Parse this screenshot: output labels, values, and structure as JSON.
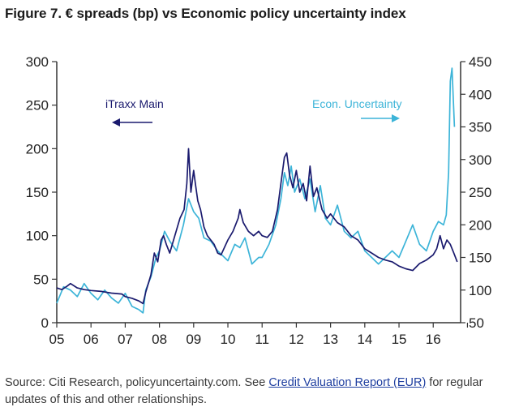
{
  "title": "Figure 7. € spreads (bp) vs Economic policy uncertainty index",
  "source": {
    "text_before": "Source: Citi Research, policyuncertainty.com. See ",
    "link_text": "Credit Valuation Report (EUR)",
    "text_after": " for regular updates of this and other relationships."
  },
  "chart_data": {
    "type": "line",
    "title": "Figure 7. € spreads (bp) vs Economic policy uncertainty index",
    "x_tick_labels": [
      "05",
      "06",
      "07",
      "08",
      "09",
      "10",
      "11",
      "12",
      "13",
      "14",
      "15",
      "16"
    ],
    "x_range": [
      2005.0,
      2016.8
    ],
    "y_left": {
      "range": [
        0,
        300
      ],
      "ticks": [
        0,
        50,
        100,
        150,
        200,
        250,
        300
      ]
    },
    "y_right": {
      "range": [
        50,
        450
      ],
      "ticks": [
        50,
        100,
        150,
        200,
        250,
        300,
        350,
        400,
        450
      ]
    },
    "colors": {
      "itraxx": "#1a1a6e",
      "uncertainty": "#3cb4d8",
      "axis": "#333333"
    },
    "annotations": [
      {
        "label": "iTraxx Main",
        "arrow": "left",
        "axis": "left"
      },
      {
        "label": "Econ. Uncertainty",
        "arrow": "right",
        "axis": "right"
      }
    ],
    "series": [
      {
        "name": "iTraxx Main",
        "axis": "left",
        "x": [
          2005.0,
          2005.15,
          2005.3,
          2005.4,
          2005.6,
          2005.8,
          2006.0,
          2006.3,
          2006.6,
          2006.9,
          2007.0,
          2007.2,
          2007.4,
          2007.52,
          2007.6,
          2007.75,
          2007.85,
          2007.95,
          2008.05,
          2008.12,
          2008.2,
          2008.3,
          2008.45,
          2008.6,
          2008.72,
          2008.8,
          2008.85,
          2008.92,
          2009.0,
          2009.05,
          2009.12,
          2009.2,
          2009.3,
          2009.4,
          2009.5,
          2009.6,
          2009.7,
          2009.8,
          2010.0,
          2010.15,
          2010.3,
          2010.35,
          2010.45,
          2010.6,
          2010.75,
          2010.9,
          2011.0,
          2011.15,
          2011.3,
          2011.45,
          2011.55,
          2011.65,
          2011.72,
          2011.8,
          2011.9,
          2012.0,
          2012.1,
          2012.2,
          2012.3,
          2012.4,
          2012.5,
          2012.6,
          2012.75,
          2012.9,
          2013.0,
          2013.2,
          2013.4,
          2013.6,
          2013.8,
          2014.0,
          2014.2,
          2014.4,
          2014.6,
          2014.8,
          2015.0,
          2015.2,
          2015.4,
          2015.6,
          2015.8,
          2016.0,
          2016.1,
          2016.2,
          2016.3,
          2016.4,
          2016.5,
          2016.6,
          2016.7
        ],
        "y": [
          40,
          38,
          42,
          45,
          40,
          38,
          37,
          36,
          34,
          33,
          30,
          28,
          25,
          22,
          35,
          55,
          80,
          70,
          95,
          100,
          90,
          80,
          100,
          120,
          130,
          160,
          200,
          150,
          175,
          160,
          140,
          130,
          110,
          100,
          95,
          90,
          80,
          78,
          95,
          105,
          120,
          130,
          115,
          105,
          100,
          105,
          100,
          98,
          105,
          130,
          160,
          190,
          195,
          170,
          155,
          175,
          150,
          160,
          140,
          180,
          145,
          155,
          130,
          120,
          125,
          115,
          110,
          100,
          95,
          85,
          80,
          75,
          72,
          70,
          65,
          62,
          60,
          68,
          72,
          78,
          85,
          100,
          85,
          95,
          90,
          80,
          70
        ]
      },
      {
        "name": "Econ. Uncertainty",
        "axis": "right",
        "x": [
          2005.0,
          2005.2,
          2005.4,
          2005.6,
          2005.8,
          2006.0,
          2006.2,
          2006.4,
          2006.6,
          2006.8,
          2007.0,
          2007.2,
          2007.4,
          2007.52,
          2007.6,
          2007.75,
          2007.9,
          2008.0,
          2008.15,
          2008.3,
          2008.5,
          2008.7,
          2008.85,
          2009.0,
          2009.15,
          2009.3,
          2009.5,
          2009.7,
          2009.9,
          2010.0,
          2010.2,
          2010.35,
          2010.5,
          2010.7,
          2010.9,
          2011.0,
          2011.2,
          2011.4,
          2011.55,
          2011.65,
          2011.75,
          2011.85,
          2011.95,
          2012.1,
          2012.25,
          2012.4,
          2012.55,
          2012.7,
          2012.85,
          2013.0,
          2013.2,
          2013.4,
          2013.6,
          2013.8,
          2014.0,
          2014.2,
          2014.4,
          2014.6,
          2014.8,
          2015.0,
          2015.2,
          2015.4,
          2015.6,
          2015.8,
          2016.0,
          2016.15,
          2016.3,
          2016.38,
          2016.45,
          2016.5,
          2016.55,
          2016.62
        ],
        "y": [
          80,
          105,
          100,
          90,
          110,
          95,
          85,
          100,
          88,
          80,
          95,
          75,
          70,
          65,
          100,
          120,
          150,
          160,
          190,
          175,
          160,
          200,
          240,
          220,
          210,
          180,
          175,
          160,
          150,
          145,
          170,
          165,
          180,
          140,
          150,
          150,
          170,
          200,
          240,
          280,
          260,
          290,
          250,
          270,
          240,
          270,
          220,
          260,
          210,
          200,
          230,
          190,
          180,
          190,
          160,
          150,
          140,
          150,
          160,
          150,
          175,
          200,
          170,
          160,
          190,
          205,
          200,
          215,
          280,
          420,
          440,
          350
        ]
      }
    ]
  }
}
